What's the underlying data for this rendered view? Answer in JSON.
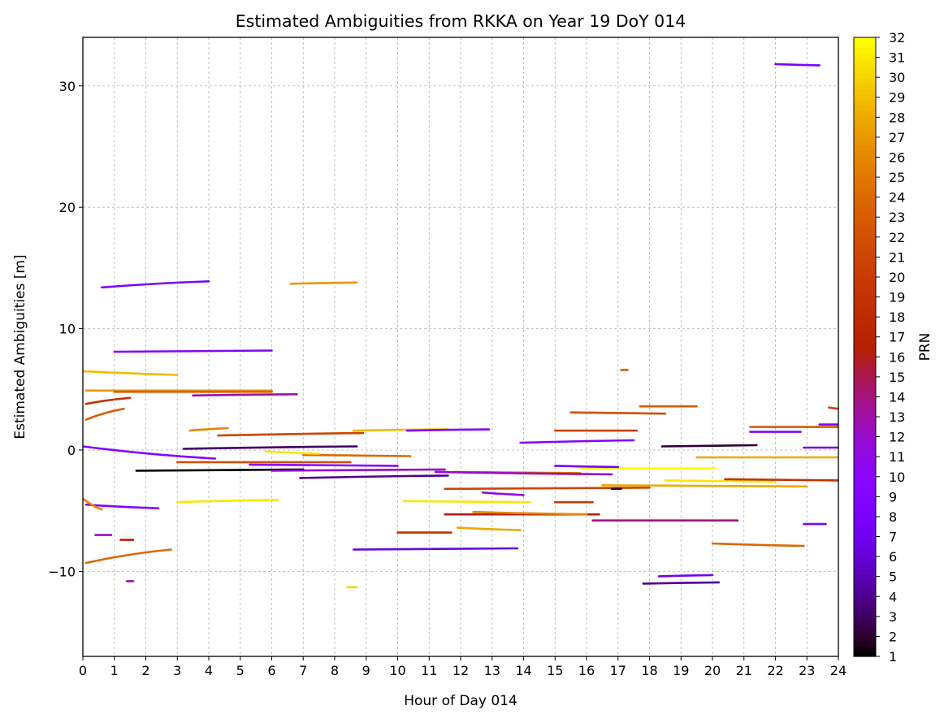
{
  "chart_data": {
    "type": "scatter",
    "title": "Estimated Ambiguities from RKKA on Year 19 DoY 014",
    "xlabel": "Hour of Day 014",
    "ylabel": "Estimated Ambiguities [m]",
    "colorbar_label": "PRN",
    "xlim": [
      0,
      24
    ],
    "ylim": [
      -17,
      34
    ],
    "xticks": [
      0,
      1,
      2,
      3,
      4,
      5,
      6,
      7,
      8,
      9,
      10,
      11,
      12,
      13,
      14,
      15,
      16,
      17,
      18,
      19,
      20,
      21,
      22,
      23,
      24
    ],
    "yticks": [
      -10,
      0,
      10,
      20,
      30
    ],
    "ytick_labels": [
      "−10",
      "0",
      "10",
      "20",
      "30"
    ],
    "colorbar_ticks": [
      1,
      2,
      3,
      4,
      5,
      6,
      7,
      8,
      9,
      10,
      11,
      12,
      13,
      14,
      15,
      16,
      17,
      18,
      19,
      20,
      21,
      22,
      23,
      24,
      25,
      26,
      27,
      28,
      29,
      30,
      31,
      32
    ],
    "colormap": "gnuplot",
    "grid": true,
    "segments": [
      {
        "prn": 8,
        "x0": 0.6,
        "x1": 4.0,
        "y0": 13.4,
        "y1": 13.9
      },
      {
        "prn": 9,
        "x0": 1.0,
        "x1": 6.0,
        "y0": 8.1,
        "y1": 8.2
      },
      {
        "prn": 27,
        "x0": 6.6,
        "x1": 8.7,
        "y0": 13.7,
        "y1": 13.8
      },
      {
        "prn": 29,
        "x0": 0.0,
        "x1": 3.0,
        "y0": 6.5,
        "y1": 6.2
      },
      {
        "prn": 27,
        "x0": 0.1,
        "x1": 6.0,
        "y0": 4.9,
        "y1": 4.9
      },
      {
        "prn": 23,
        "x0": 1.0,
        "x1": 6.0,
        "y0": 4.8,
        "y1": 4.8
      },
      {
        "prn": 13,
        "x0": 3.5,
        "x1": 6.8,
        "y0": 4.5,
        "y1": 4.6
      },
      {
        "prn": 19,
        "x0": 0.1,
        "x1": 1.5,
        "y0": 3.8,
        "y1": 4.3
      },
      {
        "prn": 23,
        "x0": 0.1,
        "x1": 1.3,
        "y0": 2.5,
        "y1": 3.4
      },
      {
        "prn": 26,
        "x0": 3.4,
        "x1": 4.6,
        "y0": 1.6,
        "y1": 1.8
      },
      {
        "prn": 21,
        "x0": 4.3,
        "x1": 8.9,
        "y0": 1.2,
        "y1": 1.4
      },
      {
        "prn": 3,
        "x0": 3.2,
        "x1": 8.7,
        "y0": 0.1,
        "y1": 0.3
      },
      {
        "prn": 29,
        "x0": 8.6,
        "x1": 11.6,
        "y0": 1.6,
        "y1": 1.7
      },
      {
        "prn": 24,
        "x0": 7.0,
        "x1": 10.4,
        "y0": -0.4,
        "y1": -0.5
      },
      {
        "prn": 31,
        "x0": 5.8,
        "x1": 7.5,
        "y0": -0.1,
        "y1": -0.3
      },
      {
        "prn": 9,
        "x0": 0.0,
        "x1": 4.2,
        "y0": 0.3,
        "y1": -0.7
      },
      {
        "prn": 1,
        "x0": 1.7,
        "x1": 7.0,
        "y0": -1.7,
        "y1": -1.6
      },
      {
        "prn": 10,
        "x0": 5.3,
        "x1": 10.0,
        "y0": -1.2,
        "y1": -1.3
      },
      {
        "prn": 12,
        "x0": 6.0,
        "x1": 11.5,
        "y0": -1.7,
        "y1": -1.6
      },
      {
        "prn": 4,
        "x0": 6.9,
        "x1": 11.6,
        "y0": -2.3,
        "y1": -2.1
      },
      {
        "prn": 22,
        "x0": 3.0,
        "x1": 8.5,
        "y0": -1.0,
        "y1": -1.0
      },
      {
        "prn": 31,
        "x0": 3.0,
        "x1": 6.2,
        "y0": -4.3,
        "y1": -4.1
      },
      {
        "prn": 9,
        "x0": 0.1,
        "x1": 2.4,
        "y0": -4.5,
        "y1": -4.8
      },
      {
        "prn": 26,
        "x0": 0.0,
        "x1": 0.6,
        "y0": -4.0,
        "y1": -4.9
      },
      {
        "prn": 24,
        "x0": 0.1,
        "x1": 2.8,
        "y0": -9.3,
        "y1": -8.2
      },
      {
        "prn": 12,
        "x0": 0.4,
        "x1": 0.9,
        "y0": -7.0,
        "y1": -7.0
      },
      {
        "prn": 17,
        "x0": 1.2,
        "x1": 1.6,
        "y0": -7.4,
        "y1": -7.4
      },
      {
        "prn": 31,
        "x0": 10.2,
        "x1": 14.2,
        "y0": -4.2,
        "y1": -4.3
      },
      {
        "prn": 6,
        "x0": 8.6,
        "x1": 13.8,
        "y0": -8.2,
        "y1": -8.1
      },
      {
        "prn": 19,
        "x0": 10.0,
        "x1": 11.7,
        "y0": -6.8,
        "y1": -6.8
      },
      {
        "prn": 28,
        "x0": 11.9,
        "x1": 13.9,
        "y0": -6.4,
        "y1": -6.6
      },
      {
        "prn": 16,
        "x0": 11.5,
        "x1": 16.4,
        "y0": -5.3,
        "y1": -5.3
      },
      {
        "prn": 26,
        "x0": 12.4,
        "x1": 16.0,
        "y0": -5.1,
        "y1": -5.3
      },
      {
        "prn": 9,
        "x0": 10.3,
        "x1": 12.9,
        "y0": 1.6,
        "y1": 1.7
      },
      {
        "prn": 11,
        "x0": 12.7,
        "x1": 14.0,
        "y0": -3.5,
        "y1": -3.7
      },
      {
        "prn": 21,
        "x0": 11.5,
        "x1": 18.0,
        "y0": -3.2,
        "y1": -3.1
      },
      {
        "prn": 25,
        "x0": 11.8,
        "x1": 15.8,
        "y0": -1.8,
        "y1": -1.9
      },
      {
        "prn": 12,
        "x0": 11.2,
        "x1": 16.8,
        "y0": -1.8,
        "y1": -2.0
      },
      {
        "prn": 9,
        "x0": 13.9,
        "x1": 17.5,
        "y0": 0.6,
        "y1": 0.8
      },
      {
        "prn": 21,
        "x0": 15.0,
        "x1": 17.6,
        "y0": 1.6,
        "y1": 1.6
      },
      {
        "prn": 22,
        "x0": 15.5,
        "x1": 18.5,
        "y0": 3.1,
        "y1": 3.0
      },
      {
        "prn": 23,
        "x0": 17.7,
        "x1": 19.5,
        "y0": 3.6,
        "y1": 3.6
      },
      {
        "prn": 20,
        "x0": 15.0,
        "x1": 16.2,
        "y0": -4.3,
        "y1": -4.3
      },
      {
        "prn": 14,
        "x0": 16.2,
        "x1": 20.8,
        "y0": -5.8,
        "y1": -5.8
      },
      {
        "prn": 32,
        "x0": 15.8,
        "x1": 20.1,
        "y0": -1.5,
        "y1": -1.5
      },
      {
        "prn": 8,
        "x0": 15.0,
        "x1": 17.0,
        "y0": -1.3,
        "y1": -1.4
      },
      {
        "prn": 28,
        "x0": 16.5,
        "x1": 23.0,
        "y0": -2.9,
        "y1": -3.0
      },
      {
        "prn": 2,
        "x0": 16.8,
        "x1": 17.1,
        "y0": -3.2,
        "y1": -3.2
      },
      {
        "prn": 31,
        "x0": 18.5,
        "x1": 22.0,
        "y0": -2.5,
        "y1": -2.6
      },
      {
        "prn": 2,
        "x0": 18.4,
        "x1": 21.4,
        "y0": 0.3,
        "y1": 0.4
      },
      {
        "prn": 19,
        "x0": 20.4,
        "x1": 24.0,
        "y0": -2.4,
        "y1": -2.5
      },
      {
        "prn": 28,
        "x0": 19.5,
        "x1": 24.0,
        "y0": -0.6,
        "y1": -0.6
      },
      {
        "prn": 24,
        "x0": 20.0,
        "x1": 22.9,
        "y0": -7.7,
        "y1": -7.9
      },
      {
        "prn": 23,
        "x0": 21.2,
        "x1": 24.0,
        "y0": 1.9,
        "y1": 1.9
      },
      {
        "prn": 9,
        "x0": 21.2,
        "x1": 22.8,
        "y0": 1.5,
        "y1": 1.5
      },
      {
        "prn": 7,
        "x0": 22.9,
        "x1": 24.0,
        "y0": 0.2,
        "y1": 0.2
      },
      {
        "prn": 9,
        "x0": 23.4,
        "x1": 24.0,
        "y0": 2.1,
        "y1": 2.1
      },
      {
        "prn": 8,
        "x0": 22.0,
        "x1": 23.4,
        "y0": 31.8,
        "y1": 31.7
      },
      {
        "prn": 8,
        "x0": 22.9,
        "x1": 23.6,
        "y0": -6.1,
        "y1": -6.1
      },
      {
        "prn": 4,
        "x0": 17.8,
        "x1": 20.2,
        "y0": -11.0,
        "y1": -10.9
      },
      {
        "prn": 7,
        "x0": 18.3,
        "x1": 20.0,
        "y0": -10.4,
        "y1": -10.3
      },
      {
        "prn": 23,
        "x0": 17.1,
        "x1": 17.3,
        "y0": 6.6,
        "y1": 6.6
      },
      {
        "prn": 21,
        "x0": 23.7,
        "x1": 24.0,
        "y0": 3.5,
        "y1": 3.4
      },
      {
        "prn": 30,
        "x0": 8.4,
        "x1": 8.7,
        "y0": -11.3,
        "y1": -11.3
      },
      {
        "prn": 13,
        "x0": 1.4,
        "x1": 1.6,
        "y0": -10.8,
        "y1": -10.8
      }
    ]
  }
}
